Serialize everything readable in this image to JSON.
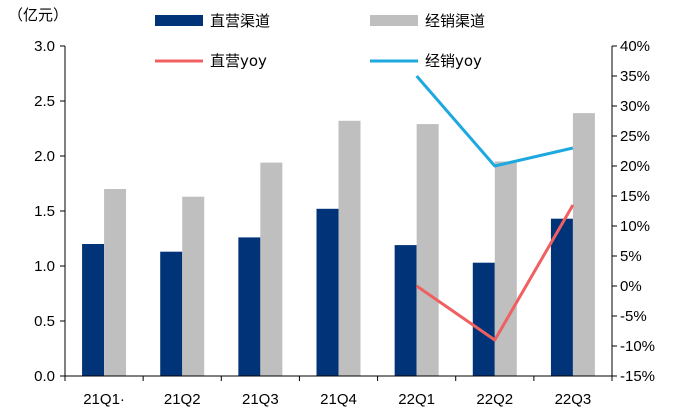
{
  "chart_data": {
    "type": "bar",
    "unit_label": "（亿元）",
    "categories": [
      "21Q1·",
      "21Q2",
      "21Q3",
      "21Q4",
      "22Q1",
      "22Q2",
      "22Q3"
    ],
    "series": [
      {
        "name": "直营渠道",
        "kind": "bar",
        "axis": "left",
        "color": "#003377",
        "values": [
          1.2,
          1.13,
          1.26,
          1.52,
          1.19,
          1.03,
          1.43
        ]
      },
      {
        "name": "经销渠道",
        "kind": "bar",
        "axis": "left",
        "color": "#bfbfbf",
        "values": [
          1.7,
          1.63,
          1.94,
          2.32,
          2.29,
          1.95,
          2.39
        ]
      },
      {
        "name": "直营yoy",
        "kind": "line",
        "axis": "right",
        "color": "#f06060",
        "values": [
          null,
          null,
          null,
          null,
          0,
          -9,
          13.5
        ]
      },
      {
        "name": "经销yoy",
        "kind": "line",
        "axis": "right",
        "color": "#1ea8e0",
        "values": [
          null,
          null,
          null,
          null,
          35,
          20,
          23
        ]
      }
    ],
    "y_left": {
      "min": 0,
      "max": 3.0,
      "ticks": [
        "0.0",
        "0.5",
        "1.0",
        "1.5",
        "2.0",
        "2.5",
        "3.0"
      ],
      "tick_values": [
        0,
        0.5,
        1.0,
        1.5,
        2.0,
        2.5,
        3.0
      ]
    },
    "y_right": {
      "min": -15,
      "max": 40,
      "ticks": [
        "-15%",
        "-10%",
        "-5%",
        "0%",
        "5%",
        "10%",
        "15%",
        "20%",
        "25%",
        "30%",
        "35%",
        "40%"
      ],
      "tick_values": [
        -15,
        -10,
        -5,
        0,
        5,
        10,
        15,
        20,
        25,
        30,
        35,
        40
      ]
    },
    "legend": {
      "placement": "top"
    },
    "grid": false
  }
}
